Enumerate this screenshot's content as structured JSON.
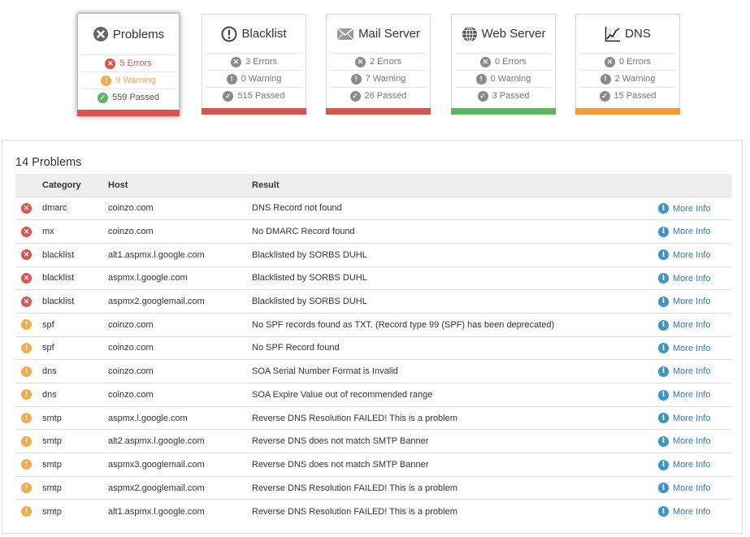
{
  "colors": {
    "error": "#d9534f",
    "warning": "#f0ad4e",
    "passed": "#5cb85c",
    "muted": "#8a8a8a",
    "bar_orange": "#f39c33",
    "bar_green": "#5cb85c",
    "bar_red": "#d9534f"
  },
  "cards": [
    {
      "key": "problems",
      "title": "Problems",
      "icon": "x-circle-icon",
      "bar": "red",
      "active": true,
      "rows": [
        {
          "text": "5 Errors",
          "kind": "error",
          "color": "#d9534f"
        },
        {
          "text": "9 Warning",
          "kind": "warning",
          "color": "#f0ad4e"
        },
        {
          "text": "559 Passed",
          "kind": "passed",
          "color": "#555"
        }
      ]
    },
    {
      "key": "blacklist",
      "title": "Blacklist",
      "icon": "exclamation-circle-icon",
      "bar": "red",
      "rows": [
        {
          "text": "3 Errors"
        },
        {
          "text": "0 Warning"
        },
        {
          "text": "515 Passed"
        }
      ]
    },
    {
      "key": "mail-server",
      "title": "Mail Server",
      "icon": "envelope-icon",
      "bar": "red",
      "rows": [
        {
          "text": "2 Errors"
        },
        {
          "text": "7 Warning"
        },
        {
          "text": "26 Passed"
        }
      ]
    },
    {
      "key": "web-server",
      "title": "Web Server",
      "icon": "globe-icon",
      "bar": "green",
      "rows": [
        {
          "text": "0 Errors"
        },
        {
          "text": "0 Warning"
        },
        {
          "text": "3 Passed"
        }
      ]
    },
    {
      "key": "dns",
      "title": "DNS",
      "icon": "chart-icon",
      "bar": "orange",
      "rows": [
        {
          "text": "0 Errors"
        },
        {
          "text": "2 Warning"
        },
        {
          "text": "15 Passed"
        }
      ]
    }
  ],
  "problems": {
    "title": "14 Problems",
    "headers": {
      "category": "Category",
      "host": "Host",
      "result": "Result"
    },
    "more_info_label": "More Info",
    "rows": [
      {
        "status": "error",
        "category": "dmarc",
        "host": "coinzo.com",
        "result": "DNS Record not found"
      },
      {
        "status": "error",
        "category": "mx",
        "host": "coinzo.com",
        "result": "No DMARC Record found"
      },
      {
        "status": "error",
        "category": "blacklist",
        "host": "alt1.aspmx.l.google.com",
        "result": "Blacklisted by SORBS DUHL"
      },
      {
        "status": "error",
        "category": "blacklist",
        "host": "aspmx.l.google.com",
        "result": "Blacklisted by SORBS DUHL"
      },
      {
        "status": "error",
        "category": "blacklist",
        "host": "aspmx2.googlemail.com",
        "result": "Blacklisted by SORBS DUHL"
      },
      {
        "status": "warning",
        "category": "spf",
        "host": "coinzo.com",
        "result": "No SPF records found as TXT. (Record type 99 (SPF) has been deprecated)"
      },
      {
        "status": "warning",
        "category": "spf",
        "host": "coinzo.com",
        "result": "No SPF Record found"
      },
      {
        "status": "warning",
        "category": "dns",
        "host": "coinzo.com",
        "result": "SOA Serial Number Format is Invalid"
      },
      {
        "status": "warning",
        "category": "dns",
        "host": "coinzo.com",
        "result": "SOA Expire Value out of recommended range"
      },
      {
        "status": "warning",
        "category": "smtp",
        "host": "aspmx.l.google.com",
        "result": "Reverse DNS Resolution FAILED! This is a problem"
      },
      {
        "status": "warning",
        "category": "smtp",
        "host": "alt2.aspmx.l.google.com",
        "result": "Reverse DNS does not match SMTP Banner"
      },
      {
        "status": "warning",
        "category": "smtp",
        "host": "aspmx3.googlemail.com",
        "result": "Reverse DNS does not match SMTP Banner"
      },
      {
        "status": "warning",
        "category": "smtp",
        "host": "aspmx2.googlemail.com",
        "result": "Reverse DNS Resolution FAILED! This is a problem"
      },
      {
        "status": "warning",
        "category": "smtp",
        "host": "alt1.aspmx.l.google.com",
        "result": "Reverse DNS Resolution FAILED! This is a problem"
      }
    ]
  }
}
